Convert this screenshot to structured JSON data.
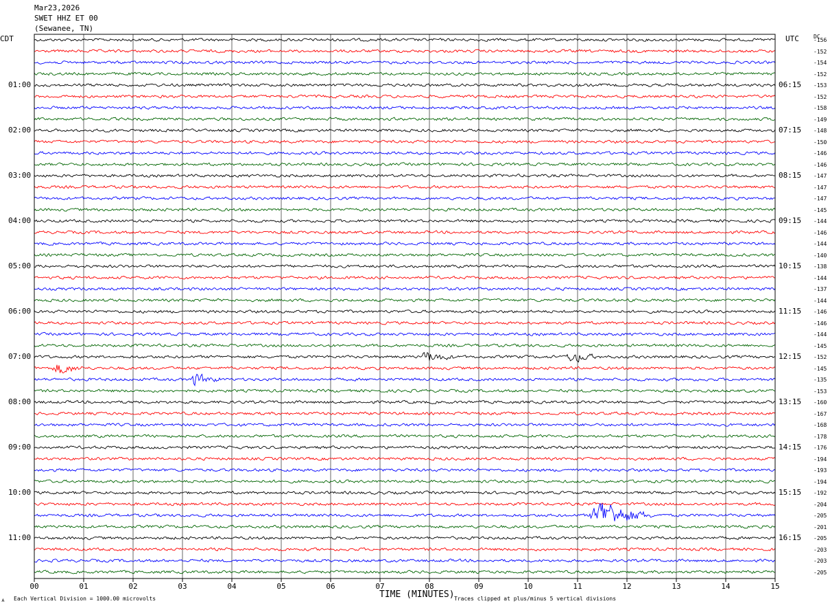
{
  "header": {
    "date": "Mar23,2026",
    "station": "SWET HHZ ET 00",
    "location": "(Sewanee, TN)"
  },
  "left_zone_label": "CDT",
  "right_zone_label": "UTC",
  "dc_label": "DC",
  "footer": {
    "scale_note": "Each Vertical Division = 1000.00 microvolts",
    "clip_note": "Traces clipped at plus/minus 5 vertical divisions",
    "corner_mark": "ᴀ"
  },
  "colors": {
    "trace_cycle": [
      "#000000",
      "#ff0000",
      "#0000ff",
      "#006400"
    ],
    "grid": "#000000"
  },
  "chart_data": {
    "type": "line",
    "title": "",
    "xlabel": "TIME (MINUTES)",
    "ylabel": "",
    "xlim": [
      0,
      15
    ],
    "x_tick_labels": [
      "00",
      "01",
      "02",
      "03",
      "04",
      "05",
      "06",
      "07",
      "08",
      "09",
      "10",
      "11",
      "12",
      "13",
      "14",
      "15"
    ],
    "grid": true,
    "trace_count": 48,
    "left_time_labels": [
      "01:00",
      "02:00",
      "03:00",
      "04:00",
      "05:00",
      "06:00",
      "07:00",
      "08:00",
      "09:00",
      "10:00",
      "11:00"
    ],
    "right_time_labels": [
      "06:15",
      "07:15",
      "08:15",
      "09:15",
      "10:15",
      "11:15",
      "12:15",
      "13:15",
      "14:15",
      "15:15",
      "16:15"
    ],
    "dc_offsets": [
      -156,
      -152,
      -154,
      -152,
      -153,
      -152,
      -158,
      -149,
      -148,
      -150,
      -146,
      -146,
      -147,
      -147,
      -147,
      -145,
      -144,
      -146,
      -144,
      -140,
      -138,
      -144,
      -137,
      -144,
      -146,
      -146,
      -144,
      -145,
      -152,
      -145,
      -135,
      -153,
      -160,
      -167,
      -168,
      -178,
      -176,
      -194,
      -193,
      -194,
      -192,
      -204,
      -205,
      -201,
      -205,
      -203,
      -203,
      -205
    ],
    "events": [
      {
        "trace": 28,
        "minute": 7.95,
        "amplitude": "moderate"
      },
      {
        "trace": 28,
        "minute": 10.9,
        "amplitude": "moderate"
      },
      {
        "trace": 29,
        "minute": 0.5,
        "amplitude": "moderate"
      },
      {
        "trace": 30,
        "minute": 3.25,
        "amplitude": "moderate"
      },
      {
        "trace": 42,
        "minute": 11.5,
        "amplitude": "large"
      }
    ]
  }
}
